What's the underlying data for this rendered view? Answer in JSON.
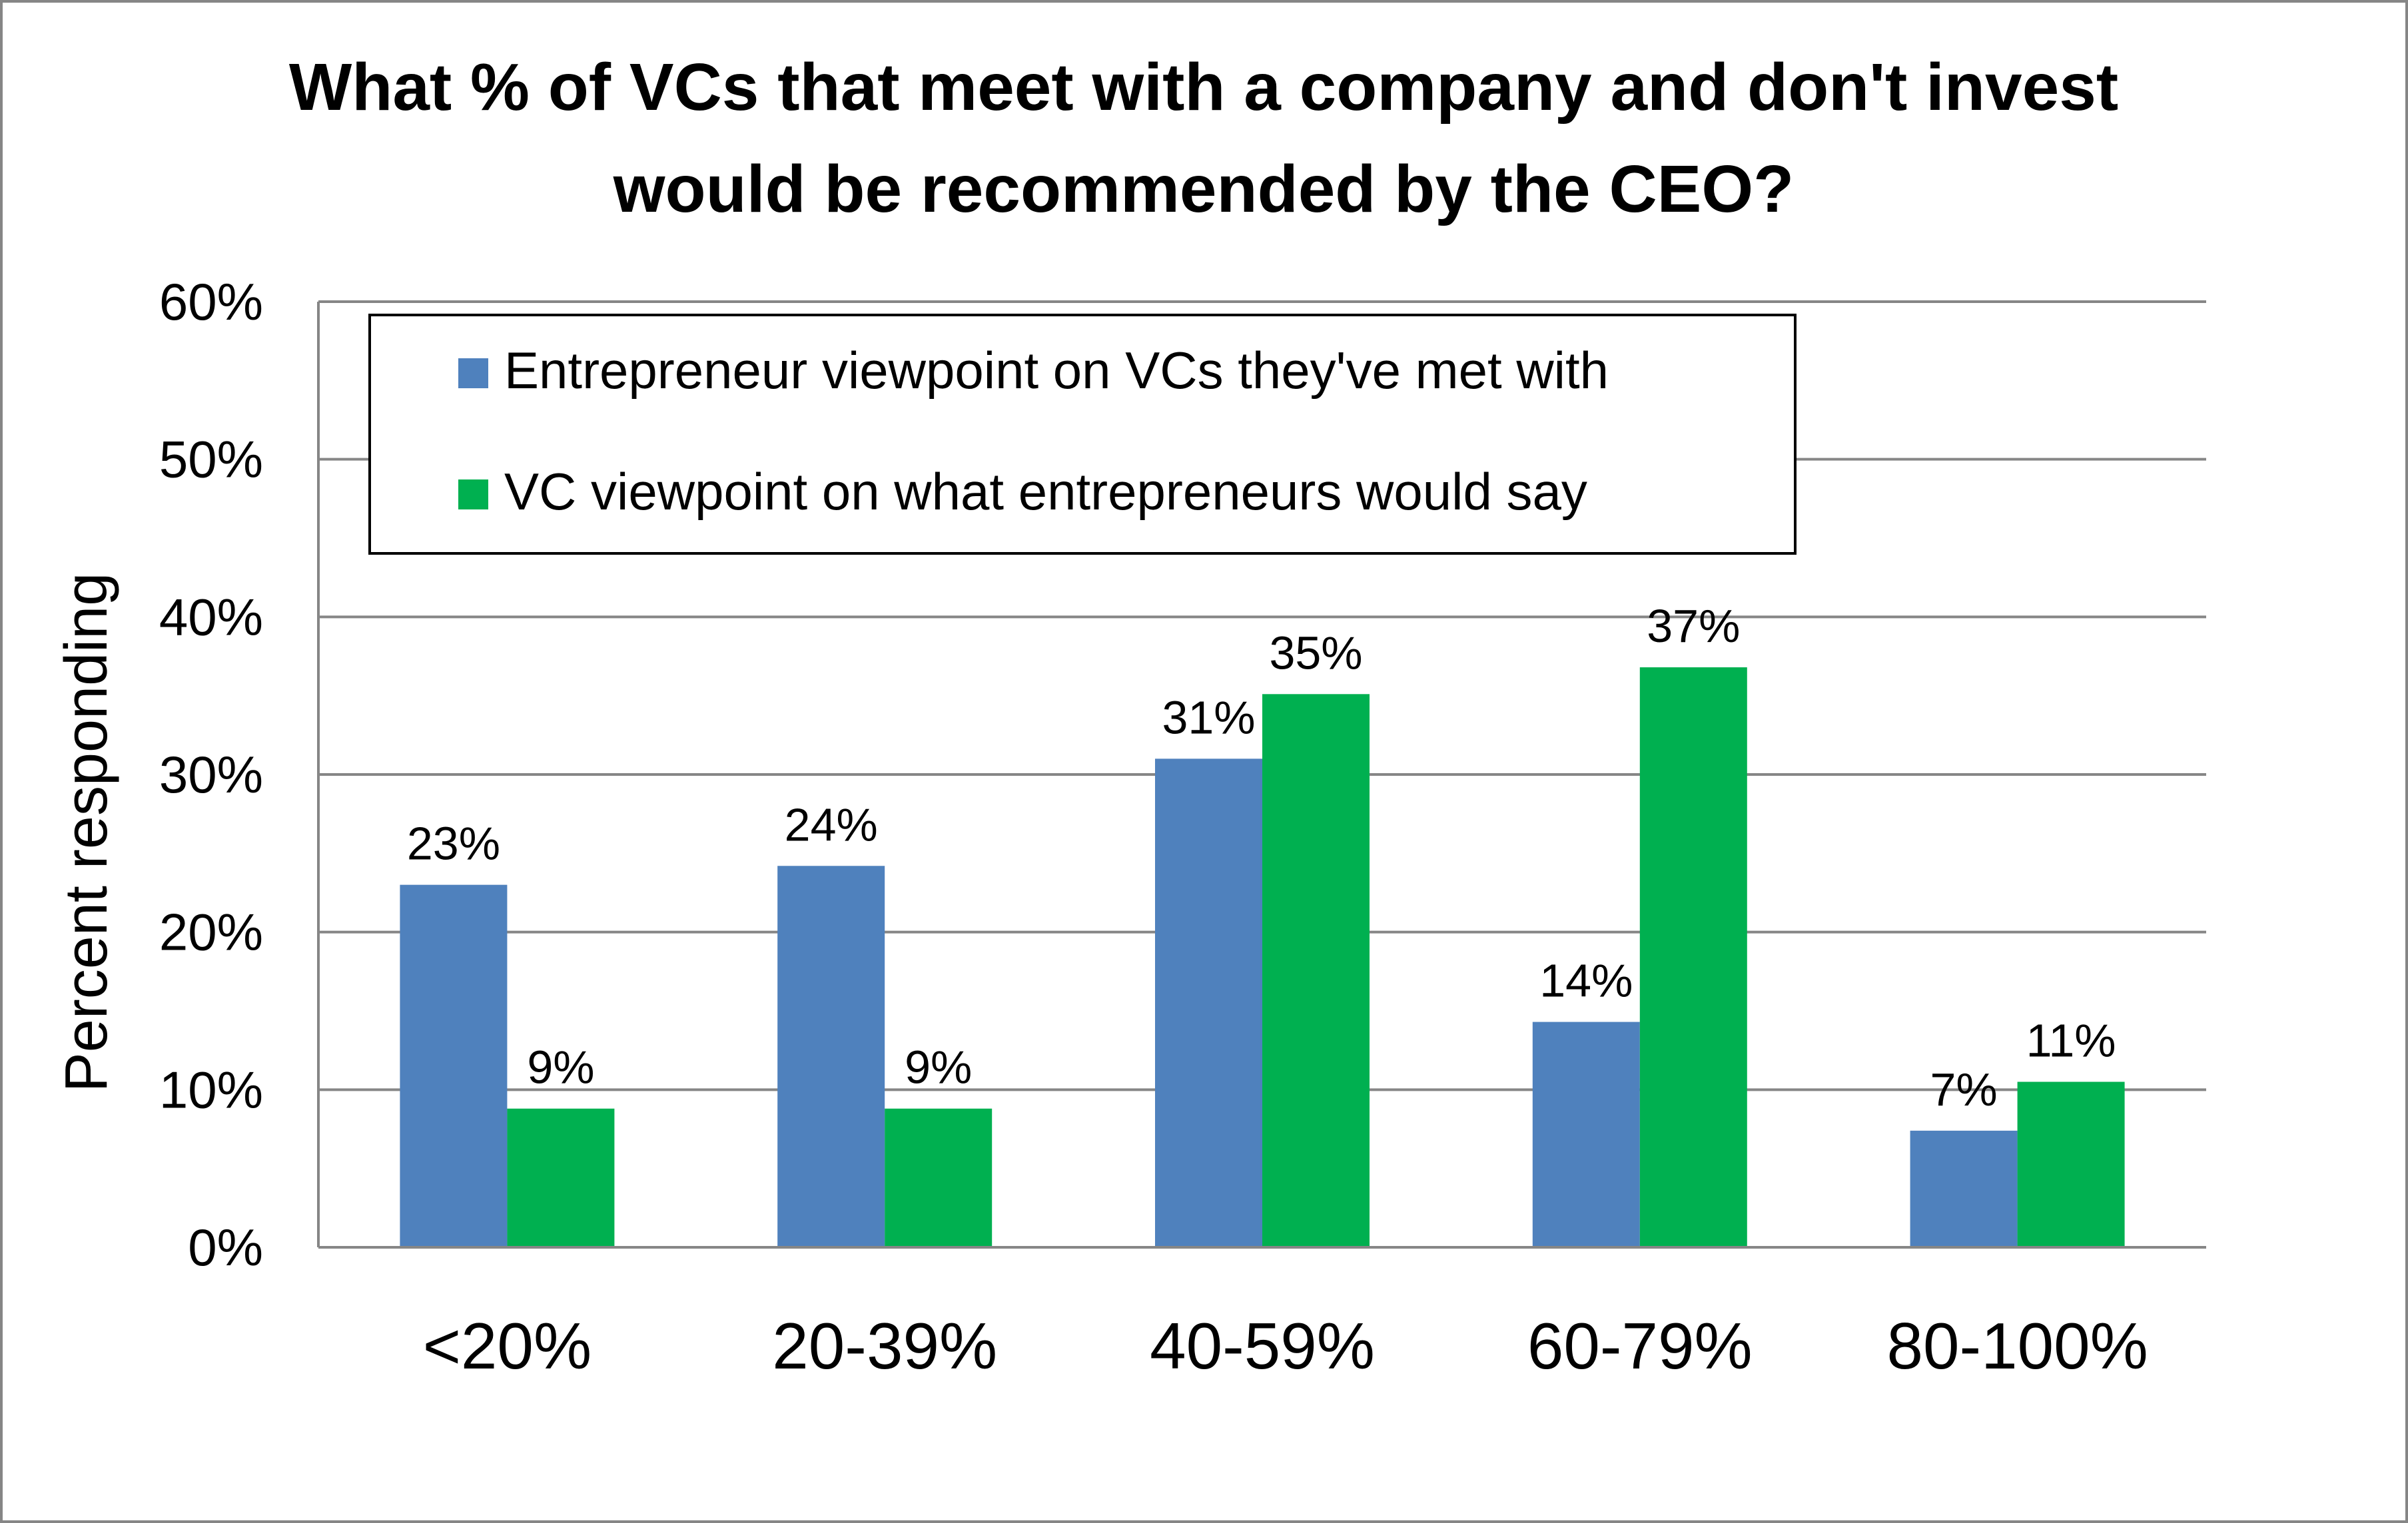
{
  "chart_data": {
    "type": "bar",
    "title": "What % of VCs that meet with a company and don't invest would be recommended by the CEO?",
    "title_lines": [
      "What % of VCs that meet with a company and don't invest",
      "would be recommended by the CEO?"
    ],
    "xlabel": "",
    "ylabel": "Percent responding",
    "ylim": [
      0,
      60
    ],
    "y_ticks": [
      0,
      10,
      20,
      30,
      40,
      50,
      60
    ],
    "y_tick_labels": [
      "0%",
      "10%",
      "20%",
      "30%",
      "40%",
      "50%",
      "60%"
    ],
    "grid": true,
    "legend_position": "top-left",
    "categories": [
      "<20%",
      "20-39%",
      "40-59%",
      "60-79%",
      "80-100%"
    ],
    "series": [
      {
        "name": "Entrepreneur viewpoint on VCs they've met with",
        "color": "#4f81bd",
        "values": [
          23,
          24.2,
          31,
          14.3,
          7.4
        ],
        "labels": [
          "23%",
          "24%",
          "31%",
          "14%",
          "7%"
        ]
      },
      {
        "name": "VC viewpoint on what entrepreneurs would say",
        "color": "#00b050",
        "values": [
          8.8,
          8.8,
          35.1,
          36.8,
          10.5
        ],
        "labels": [
          "9%",
          "9%",
          "35%",
          "37%",
          "11%"
        ]
      }
    ]
  }
}
